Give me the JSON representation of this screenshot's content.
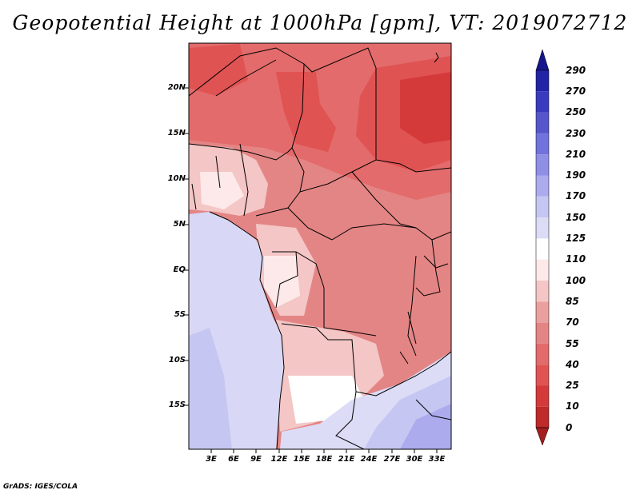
{
  "title": "Geopotential Height at 1000hPa [gpm], VT: 2019072712",
  "footer": "GrADS: IGES/COLA",
  "map": {
    "variable": "Geopotential Height at 1000hPa",
    "units": "gpm",
    "valid_time": "2019072712",
    "lat_labels": [
      "20N",
      "15N",
      "10N",
      "5N",
      "EQ",
      "5S",
      "10S",
      "15S"
    ],
    "lon_labels": [
      "3E",
      "6E",
      "9E",
      "12E",
      "15E",
      "18E",
      "21E",
      "24E",
      "27E",
      "30E",
      "33E"
    ]
  },
  "colorbar": {
    "levels": [
      "0",
      "10",
      "25",
      "40",
      "55",
      "70",
      "85",
      "100",
      "110",
      "125",
      "150",
      "170",
      "190",
      "210",
      "230",
      "250",
      "270",
      "290"
    ],
    "colors": [
      "#a51e1e",
      "#bf2a2a",
      "#d43a3a",
      "#e05353",
      "#e36b6b",
      "#e48585",
      "#eba0a0",
      "#f4c6c6",
      "#fde9e9",
      "#ffffff",
      "#dcdcf6",
      "#c6c6f2",
      "#ababee",
      "#8f8fe6",
      "#7272dc",
      "#5555cc",
      "#3a3abf",
      "#2323a5",
      "#15158c"
    ]
  },
  "colors": {
    "background": "#ffffff",
    "ocean": "#d8d8f6",
    "border": "#000000"
  }
}
